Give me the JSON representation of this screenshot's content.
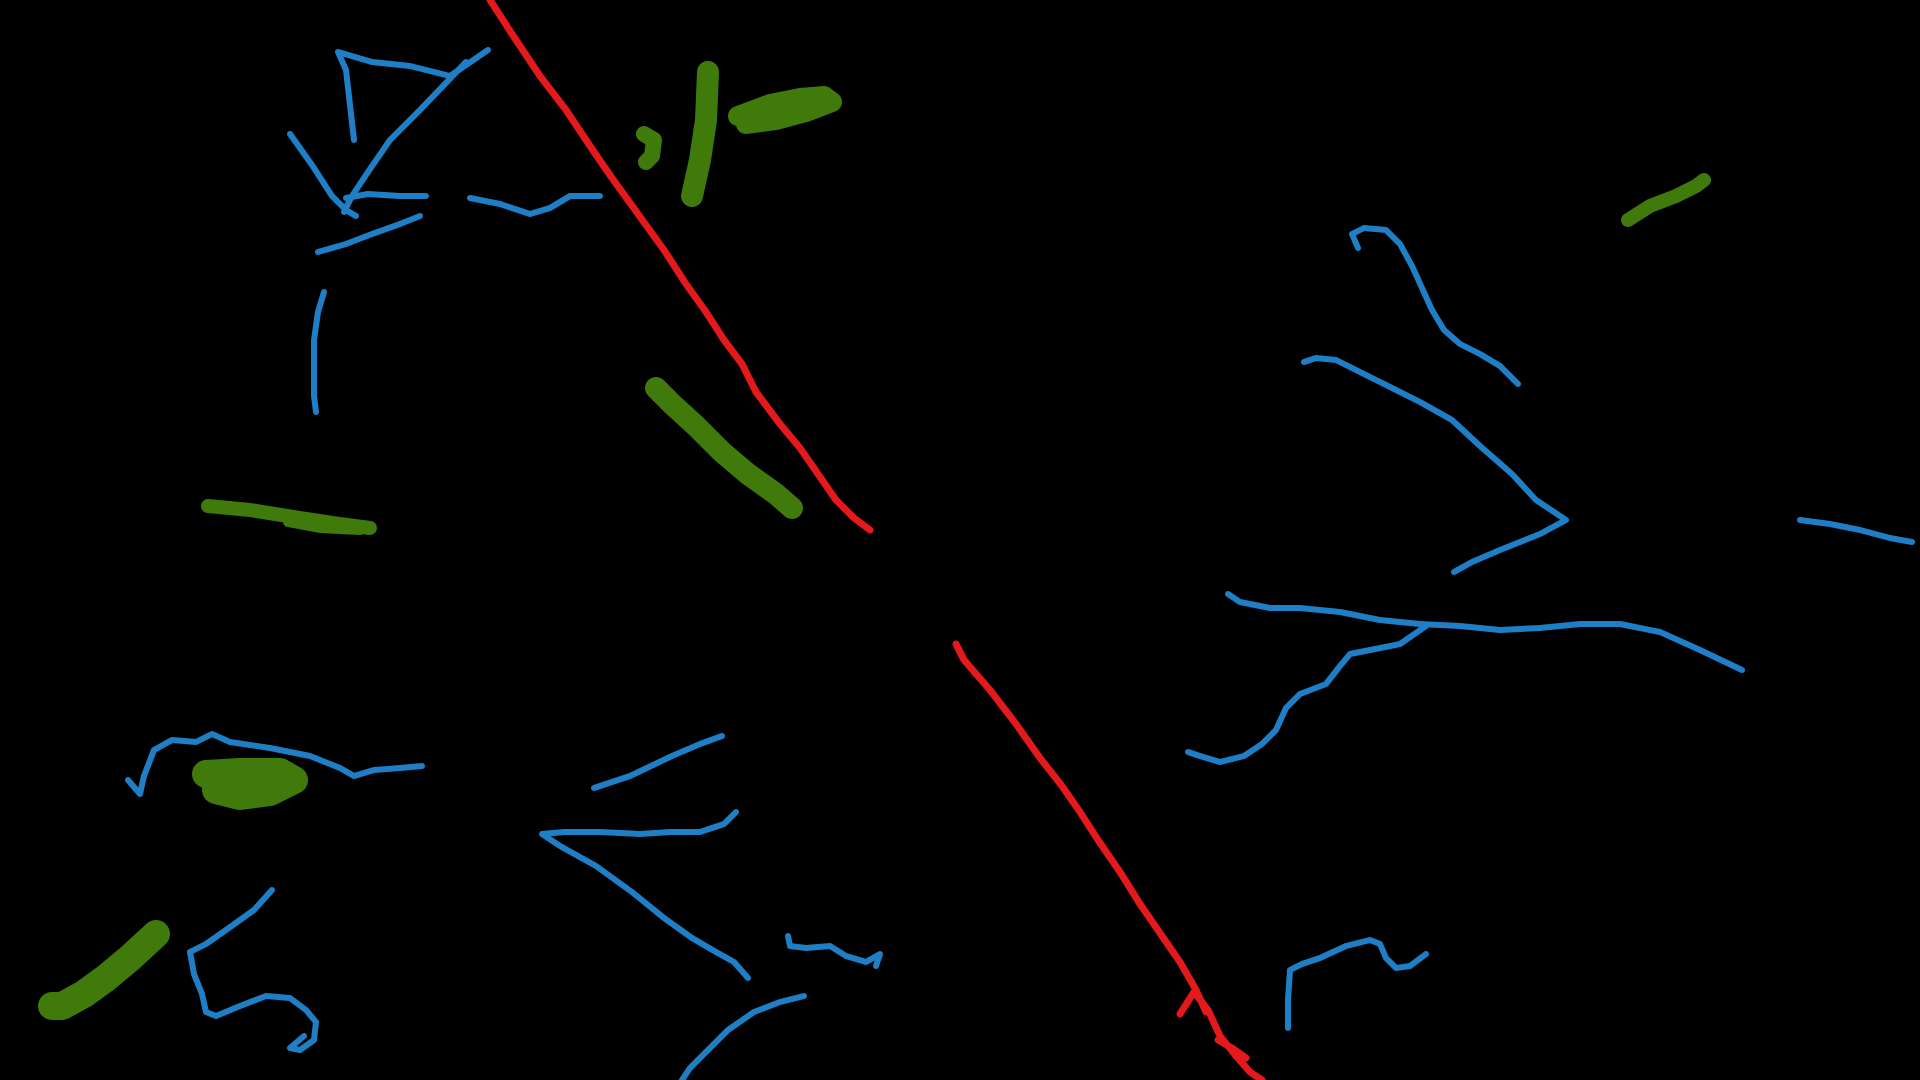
{
  "canvas": {
    "background": "#000000"
  },
  "colors": {
    "blue": "#1f7fc6",
    "red": "#e3191c",
    "green": "#3f7a0a"
  },
  "stroke_groups": [
    {
      "name": "blue-strokes",
      "color": "blue"
    },
    {
      "name": "red-strokes",
      "color": "red"
    },
    {
      "name": "green-strokes",
      "color": "green"
    }
  ]
}
